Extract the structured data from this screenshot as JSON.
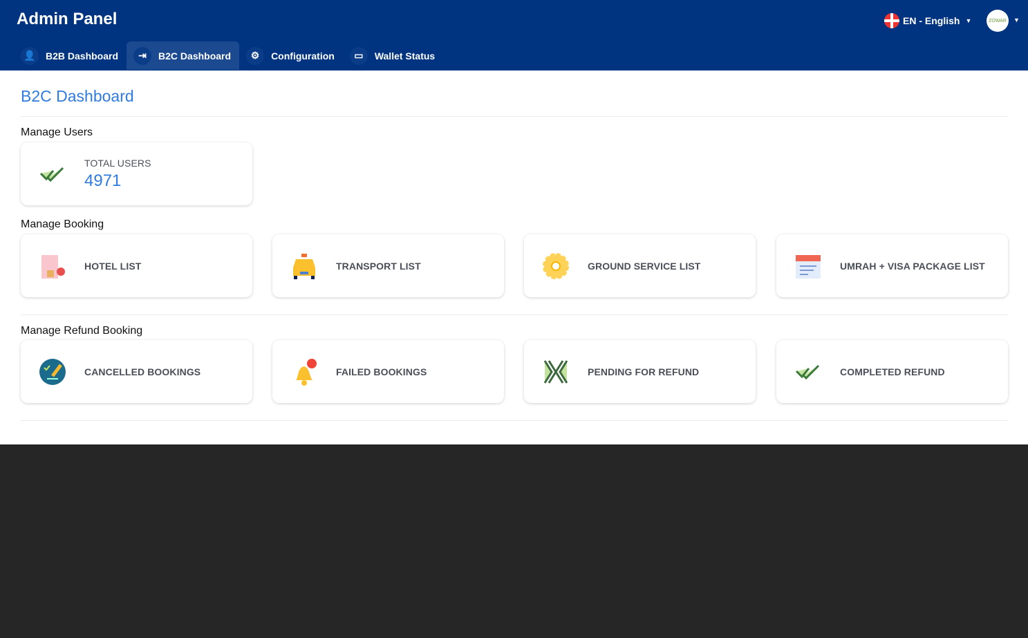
{
  "header": {
    "title": "Admin Panel",
    "nav": [
      {
        "label": "B2B Dashboard",
        "icon": "user-icon"
      },
      {
        "label": "B2C Dashboard",
        "icon": "login-icon",
        "active": true
      },
      {
        "label": "Configuration",
        "icon": "gear-icon"
      },
      {
        "label": "Wallet Status",
        "icon": "card-icon"
      }
    ],
    "language": "EN - English",
    "avatar_text": "ZOWAR"
  },
  "page": {
    "title": "B2C Dashboard"
  },
  "users": {
    "heading": "Manage Users",
    "total_label": "TOTAL USERS",
    "total_value": "4971"
  },
  "booking": {
    "heading": "Manage Booking",
    "items": [
      "HOTEL LIST",
      "TRANSPORT LIST",
      "GROUND SERVICE LIST",
      "UMRAH + VISA PACKAGE LIST"
    ]
  },
  "refund": {
    "heading": "Manage Refund Booking",
    "items": [
      "CANCELLED BOOKINGS",
      "FAILED BOOKINGS",
      "PENDING FOR REFUND",
      "COMPLETED REFUND"
    ]
  },
  "colors": {
    "header": "#003380",
    "accent": "#2f7be0",
    "footer": "#262626"
  }
}
